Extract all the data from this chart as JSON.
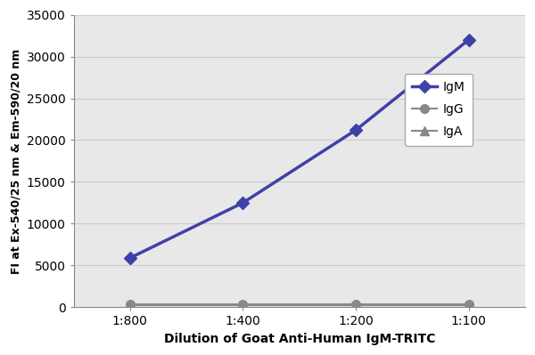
{
  "x_labels": [
    "1:800",
    "1:400",
    "1:200",
    "1:100"
  ],
  "x_positions": [
    1,
    2,
    3,
    4
  ],
  "IgM_values": [
    5900,
    12500,
    21200,
    32000
  ],
  "IgG_values": [
    300,
    300,
    300,
    300
  ],
  "IgA_values": [
    200,
    200,
    200,
    200
  ],
  "IgM_color": "#4040aa",
  "IgG_color": "#888888",
  "IgA_color": "#888888",
  "IgM_marker": "D",
  "IgG_marker": "o",
  "IgA_marker": "^",
  "ylabel": "FI at Ex-540/25 nm & Em-590/20 nm",
  "xlabel": "Dilution of Goat Anti-Human IgM-TRITC",
  "ylim": [
    0,
    35000
  ],
  "yticks": [
    0,
    5000,
    10000,
    15000,
    20000,
    25000,
    30000,
    35000
  ],
  "bg_color": "#ffffff",
  "plot_bg_color": "#e8e8e8",
  "grid_color": "#cccccc",
  "legend_labels": [
    "IgM",
    "IgG",
    "IgA"
  ]
}
